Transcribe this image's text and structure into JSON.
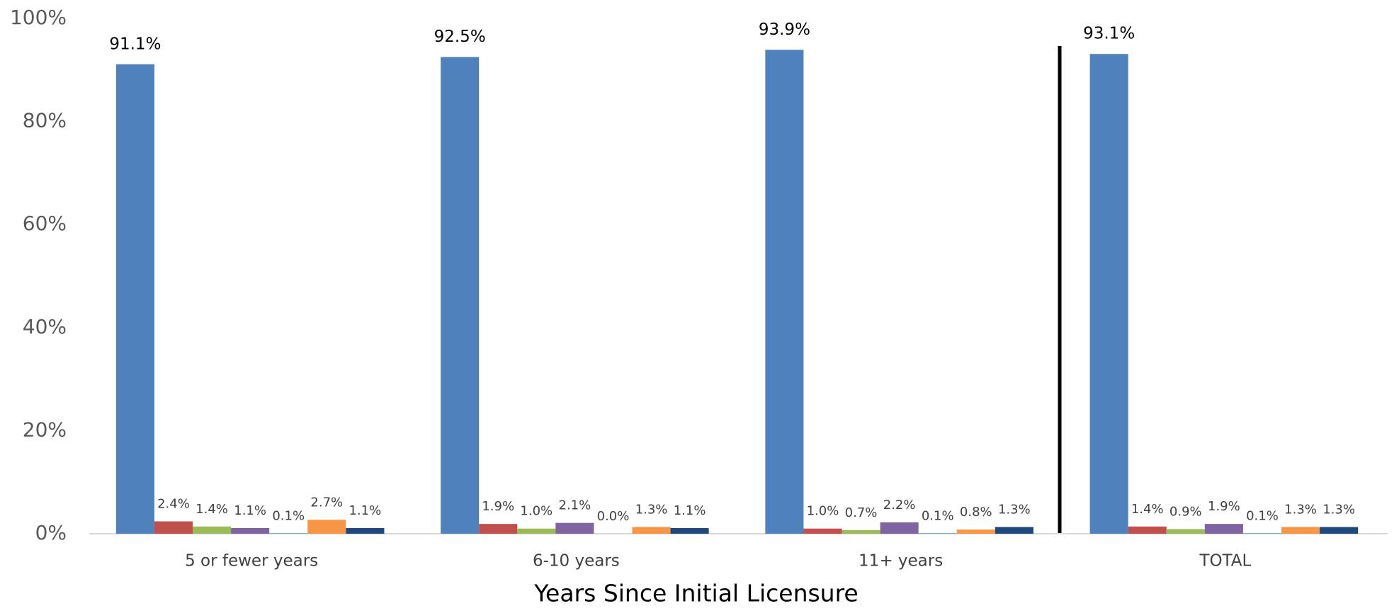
{
  "chart_data": {
    "type": "bar",
    "x_label": "Years Since Initial Licensure",
    "categories": [
      "5 or fewer years",
      "6-10 years",
      "11+  years",
      "TOTAL"
    ],
    "series": [
      {
        "color": "#4f81bd",
        "values": [
          91.1,
          92.5,
          93.9,
          93.1
        ],
        "value_labels": [
          "91.1%",
          "92.5%",
          "93.9%",
          "93.1%"
        ]
      },
      {
        "color": "#c0504d",
        "values": [
          2.4,
          1.9,
          1.0,
          1.4
        ],
        "value_labels": [
          "2.4%",
          "1.9%",
          "1.0%",
          "1.4%"
        ]
      },
      {
        "color": "#9bbb59",
        "values": [
          1.4,
          1.0,
          0.7,
          0.9
        ],
        "value_labels": [
          "1.4%",
          "1.0%",
          "0.7%",
          "0.9%"
        ]
      },
      {
        "color": "#8064a2",
        "values": [
          1.1,
          2.1,
          2.2,
          1.9
        ],
        "value_labels": [
          "1.1%",
          "2.1%",
          "2.2%",
          "1.9%"
        ]
      },
      {
        "color": "#4bacc6",
        "values": [
          0.1,
          0.0,
          0.1,
          0.1
        ],
        "value_labels": [
          "0.1%",
          "0.0%",
          "0.1%",
          "0.1%"
        ]
      },
      {
        "color": "#f79646",
        "values": [
          2.7,
          1.3,
          0.8,
          1.3
        ],
        "value_labels": [
          "2.7%",
          "1.3%",
          "0.8%",
          "1.3%"
        ]
      },
      {
        "color": "#1f497d",
        "values": [
          1.1,
          1.1,
          1.3,
          1.3
        ],
        "value_labels": [
          "1.1%",
          "1.1%",
          "1.3%",
          "1.3%"
        ]
      }
    ],
    "ylim": [
      0,
      100
    ],
    "yticks": [
      {
        "value": 0,
        "label": "0%"
      },
      {
        "value": 20,
        "label": "20%"
      },
      {
        "value": 40,
        "label": "40%"
      },
      {
        "value": 60,
        "label": "60%"
      },
      {
        "value": 80,
        "label": "80%"
      },
      {
        "value": 100,
        "label": "100%"
      }
    ],
    "grid": false
  }
}
